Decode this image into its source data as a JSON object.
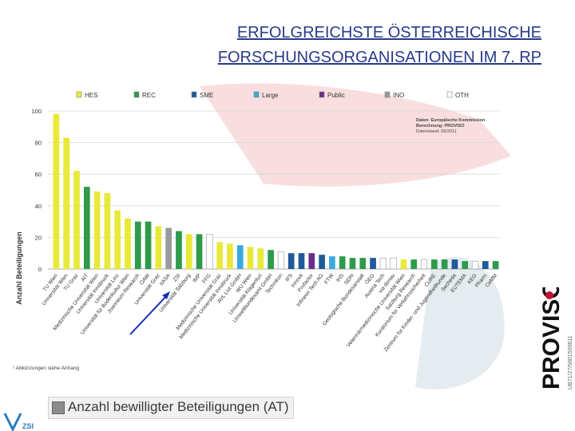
{
  "slide": {
    "title_line1": "ERFOLGREICHSTE ÖSTERREICHISCHE",
    "title_line2": "FORSCHUNGSORGANISATIONEN IM 7. RP",
    "footer_text": "Anzahl bewilligter Beteiligungen (AT)",
    "footnote": "¹ Abkürzungen siehe Anhang",
    "brand_text": "PROVISO",
    "brand_id": "UB71/27/5801500611",
    "logo_text": "ZSI",
    "colors": {
      "title": "#2a3a8a",
      "brand_red": "#c8102e"
    }
  },
  "chart_data": {
    "type": "bar",
    "ylabel": "Anzahl Beteiligungen",
    "ylim": [
      0,
      100
    ],
    "yticks": [
      0,
      20,
      40,
      60,
      80,
      100
    ],
    "grid": true,
    "legend_position": "top",
    "source": [
      "Daten: Europäische Kommission",
      "Berechnung: PROVISO",
      "Datenstand: 05/2011"
    ],
    "legend": [
      {
        "key": "HES",
        "label": "HES",
        "color": "#e9e93a"
      },
      {
        "key": "REC",
        "label": "REC",
        "color": "#2e9a4a"
      },
      {
        "key": "SME",
        "label": "SME",
        "color": "#1f5a9a"
      },
      {
        "key": "Large",
        "label": "Large",
        "color": "#3aa9dd"
      },
      {
        "key": "Public",
        "label": "Public",
        "color": "#6a2d8a"
      },
      {
        "key": "INO",
        "label": "INO",
        "color": "#9a9a9a"
      },
      {
        "key": "OTH",
        "label": "OTH",
        "color": "#ffffff"
      }
    ],
    "bars": [
      {
        "label": "TU Wien",
        "value": 98,
        "type": "HES"
      },
      {
        "label": "Universität Wien",
        "value": 83,
        "type": "HES"
      },
      {
        "label": "TU Graz",
        "value": 62,
        "type": "HES"
      },
      {
        "label": "AIT",
        "value": 52,
        "type": "REC"
      },
      {
        "label": "Medizinische Universität Wien",
        "value": 49,
        "type": "HES"
      },
      {
        "label": "Universität Innsbruck",
        "value": 48,
        "type": "HES"
      },
      {
        "label": "Universität Linz",
        "value": 37,
        "type": "HES"
      },
      {
        "label": "Universität für Bodenkultur Wien",
        "value": 32,
        "type": "HES"
      },
      {
        "label": "Joanneum Research",
        "value": 30,
        "type": "REC"
      },
      {
        "label": "ÖAW",
        "value": 30,
        "type": "REC"
      },
      {
        "label": "Universität Graz",
        "value": 27,
        "type": "HES"
      },
      {
        "label": "IIASA",
        "value": 26,
        "type": "INO"
      },
      {
        "label": "ZSI",
        "value": 24,
        "type": "REC"
      },
      {
        "label": "Universität Salzburg",
        "value": 22,
        "type": "HES"
      },
      {
        "label": "IMP",
        "value": 22,
        "type": "REC"
      },
      {
        "label": "FFG",
        "value": 22,
        "type": "OTH"
      },
      {
        "label": "Medizinische Universität Graz",
        "value": 17,
        "type": "HES"
      },
      {
        "label": "Medizinische Universität Innsbruck",
        "value": 16,
        "type": "HES"
      },
      {
        "label": "AVL List GmbH",
        "value": 15,
        "type": "Large"
      },
      {
        "label": "WU Wien",
        "value": 14,
        "type": "HES"
      },
      {
        "label": "Universität Klagenfurt",
        "value": 13,
        "type": "HES"
      },
      {
        "label": "Umweltbundesamt GmbH",
        "value": 12,
        "type": "REC"
      },
      {
        "label": "Technikon",
        "value": 11,
        "type": "OTH"
      },
      {
        "label": "IFS",
        "value": 10,
        "type": "SME"
      },
      {
        "label": "Innovit",
        "value": 10,
        "type": "SME"
      },
      {
        "label": "Profactor",
        "value": 10,
        "type": "Public"
      },
      {
        "label": "Infineon Tech AG",
        "value": 9,
        "type": "SME"
      },
      {
        "label": "FTW",
        "value": 8,
        "type": "Large"
      },
      {
        "label": "IHS",
        "value": 8,
        "type": "REC"
      },
      {
        "label": "SERI",
        "value": 7,
        "type": "REC"
      },
      {
        "label": "Geologische Bundesanstalt",
        "value": 7,
        "type": "REC"
      },
      {
        "label": "ÖEG",
        "value": 7,
        "type": "SME"
      },
      {
        "label": "Austria Tech",
        "value": 7,
        "type": "OTH"
      },
      {
        "label": "via donau",
        "value": 7,
        "type": "OTH"
      },
      {
        "label": "Veterinärmedizinische Universität Wien",
        "value": 6,
        "type": "HES"
      },
      {
        "label": "Salzburg Research",
        "value": 6,
        "type": "REC"
      },
      {
        "label": "Kuratorium für Verkehrssicherheit",
        "value": 6,
        "type": "OTH"
      },
      {
        "label": "CURE",
        "value": 6,
        "type": "REC"
      },
      {
        "label": "Zentrum für Kinder- und Jugendheilkunde",
        "value": 6,
        "type": "REC"
      },
      {
        "label": "Secheda",
        "value": 6,
        "type": "SME"
      },
      {
        "label": "EUTEMA",
        "value": 5,
        "type": "REC"
      },
      {
        "label": "KEG",
        "value": 5,
        "type": "OTH"
      },
      {
        "label": "Pharm",
        "value": 5,
        "type": "SME"
      },
      {
        "label": "CeMM",
        "value": 5,
        "type": "REC"
      }
    ]
  }
}
